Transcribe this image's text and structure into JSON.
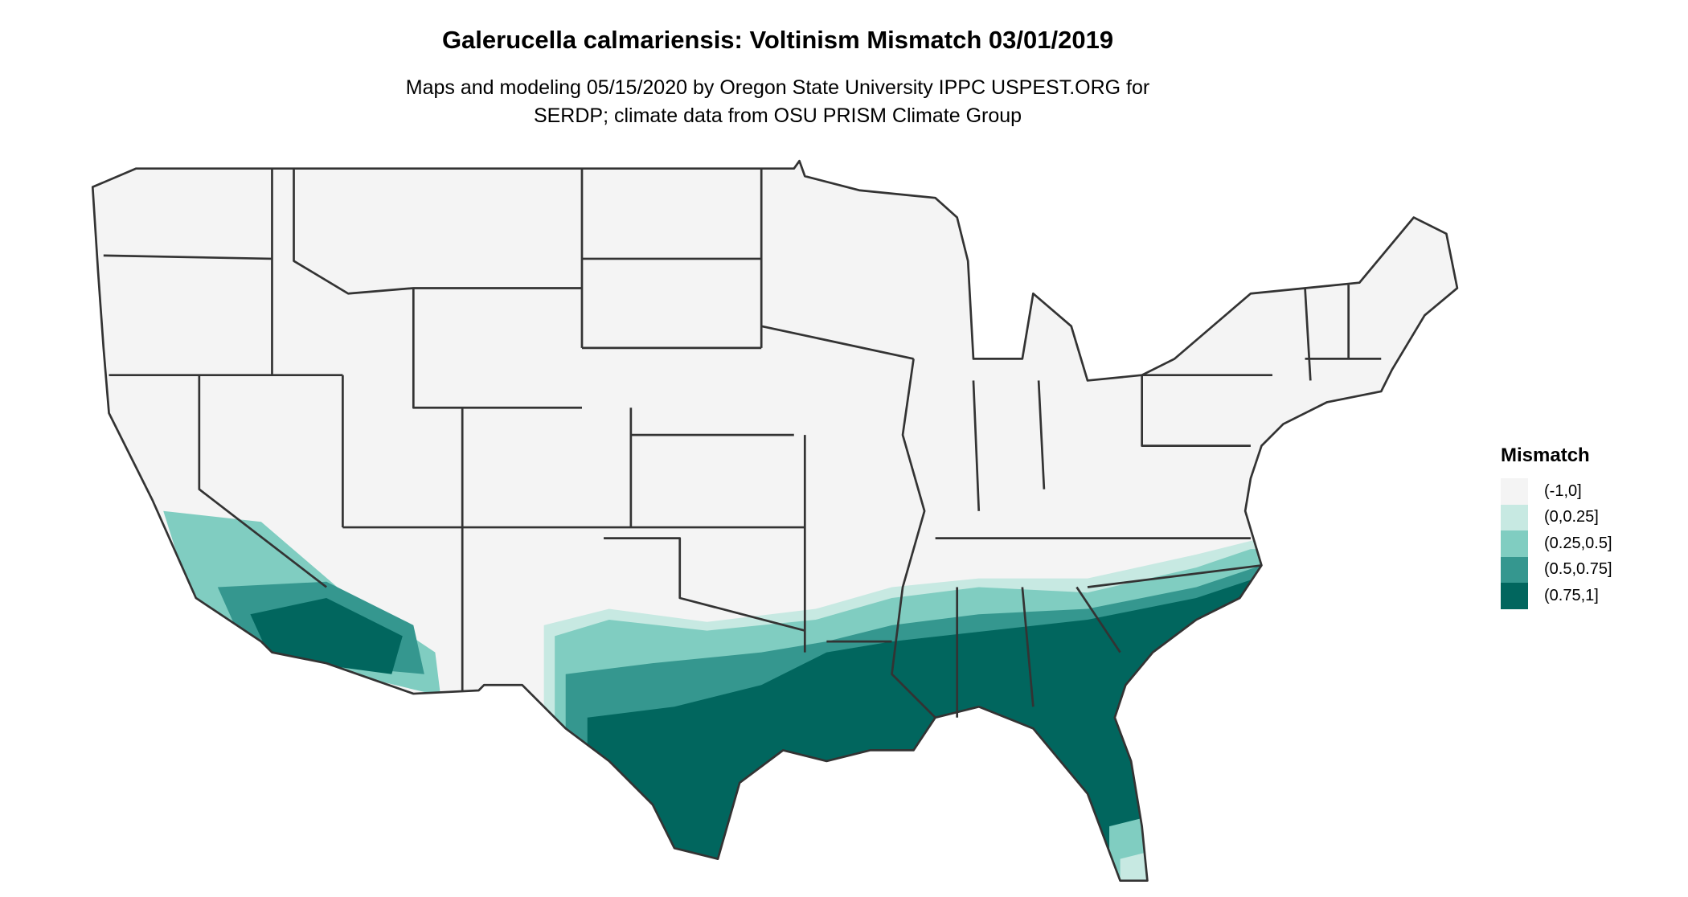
{
  "title": "Galerucella calmariensis: Voltinism Mismatch 03/01/2019",
  "subtitle_line1": "Maps and modeling 05/15/2020 by Oregon State University IPPC USPEST.ORG for",
  "subtitle_line2": "SERDP; climate data from OSU PRISM Climate Group",
  "map": {
    "region": "Contiguous United States",
    "base_color": "#f4f4f4",
    "border_color": "#333333"
  },
  "legend": {
    "title": "Mismatch",
    "items": [
      {
        "label": "(-1,0]",
        "color": "#f4f4f4"
      },
      {
        "label": "(0,0.25]",
        "color": "#c7e9e2"
      },
      {
        "label": "(0.25,0.5]",
        "color": "#80cdc1"
      },
      {
        "label": "(0.5,0.75]",
        "color": "#35978f"
      },
      {
        "label": "(0.75,1]",
        "color": "#01665e"
      }
    ]
  }
}
